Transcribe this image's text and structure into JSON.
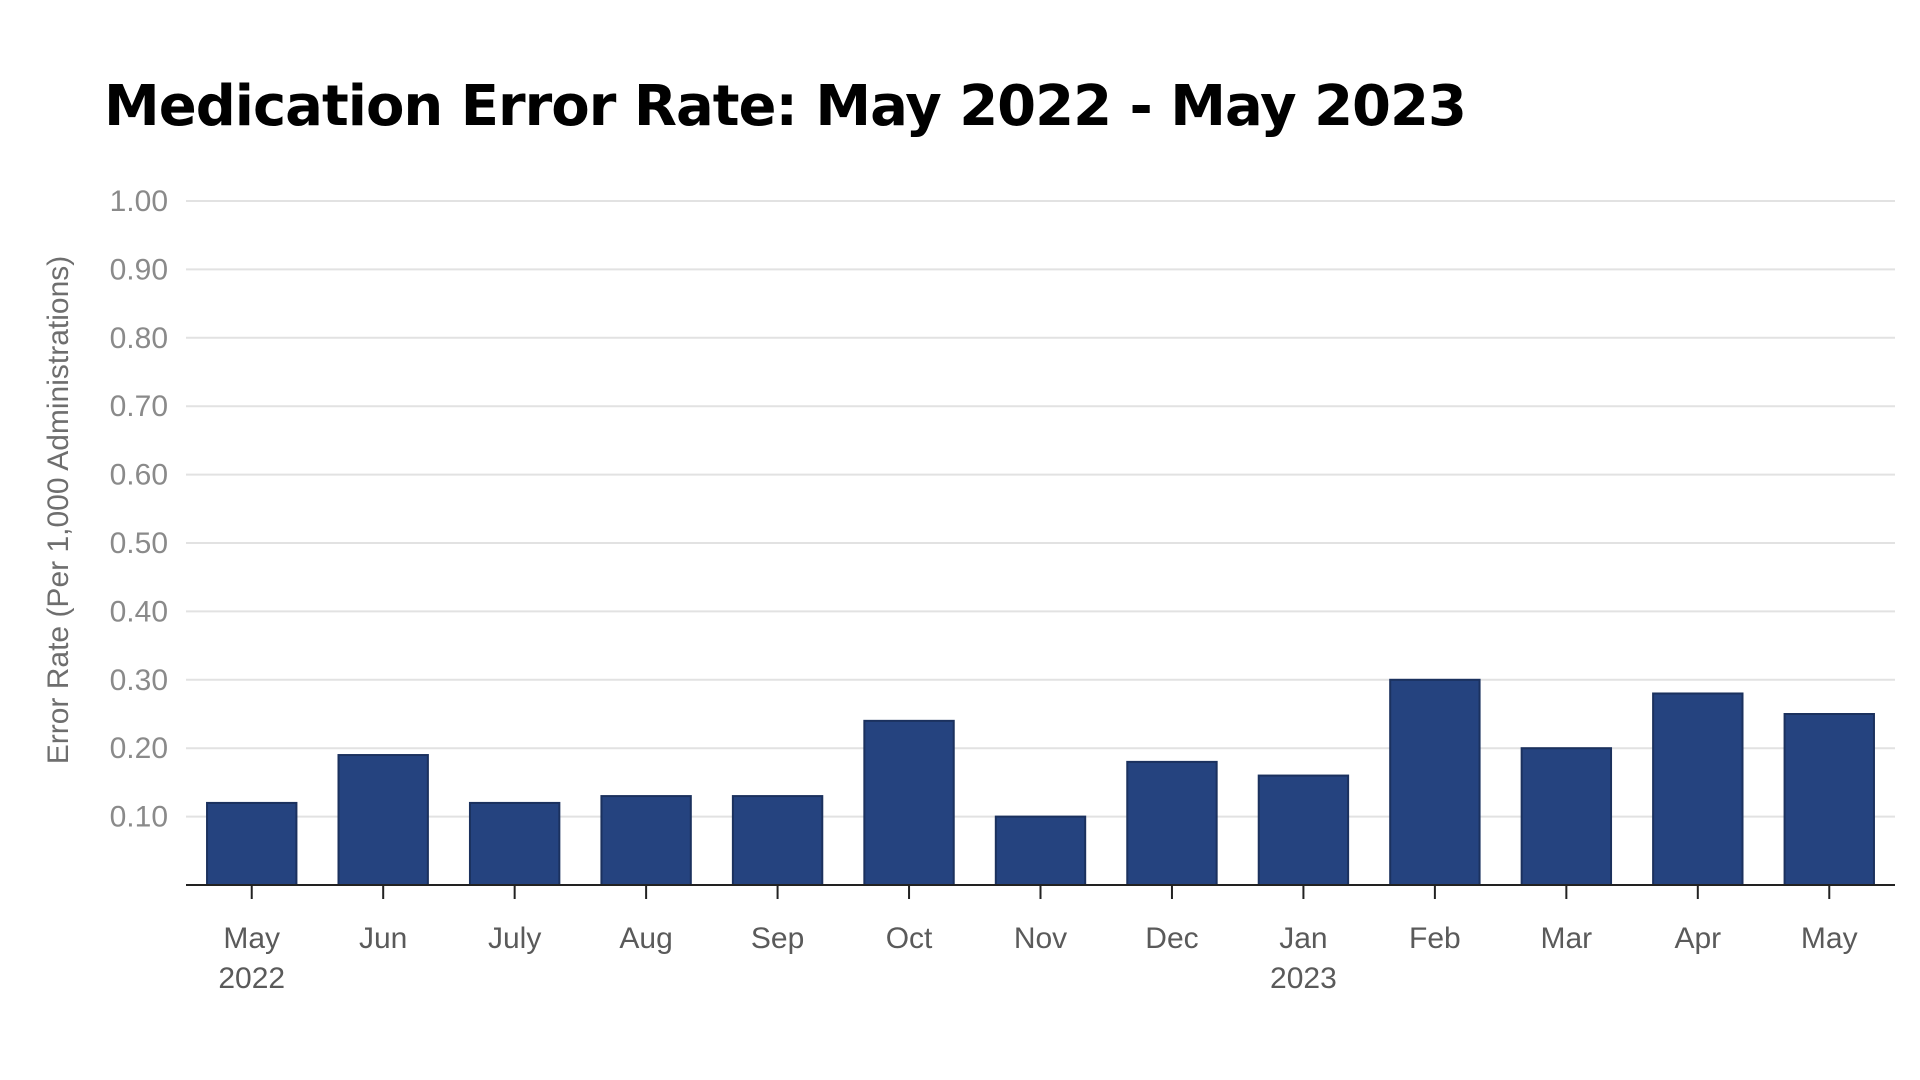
{
  "chart_data": {
    "type": "bar",
    "title": "Medication Error Rate: May 2022 - May 2023",
    "ylabel": "Error Rate (Per 1,000 Administrations)",
    "xlabel": "",
    "ylim": [
      0,
      1.0
    ],
    "yticks": [
      "0.10",
      "0.20",
      "0.30",
      "0.40",
      "0.50",
      "0.60",
      "0.70",
      "0.80",
      "0.90",
      "1.00"
    ],
    "grid": true,
    "categories": [
      {
        "label": "May",
        "sublabel": "2022"
      },
      {
        "label": "Jun",
        "sublabel": ""
      },
      {
        "label": "July",
        "sublabel": ""
      },
      {
        "label": "Aug",
        "sublabel": ""
      },
      {
        "label": "Sep",
        "sublabel": ""
      },
      {
        "label": "Oct",
        "sublabel": ""
      },
      {
        "label": "Nov",
        "sublabel": ""
      },
      {
        "label": "Dec",
        "sublabel": ""
      },
      {
        "label": "Jan",
        "sublabel": "2023"
      },
      {
        "label": "Feb",
        "sublabel": ""
      },
      {
        "label": "Mar",
        "sublabel": ""
      },
      {
        "label": "Apr",
        "sublabel": ""
      },
      {
        "label": "May",
        "sublabel": ""
      }
    ],
    "values": [
      0.12,
      0.19,
      0.12,
      0.13,
      0.13,
      0.24,
      0.1,
      0.18,
      0.16,
      0.3,
      0.2,
      0.28,
      0.25
    ],
    "colors": {
      "bar": "#25437f",
      "bar_edge": "#1b315e",
      "grid": "#e2e2e2",
      "axis": "#222222"
    }
  }
}
